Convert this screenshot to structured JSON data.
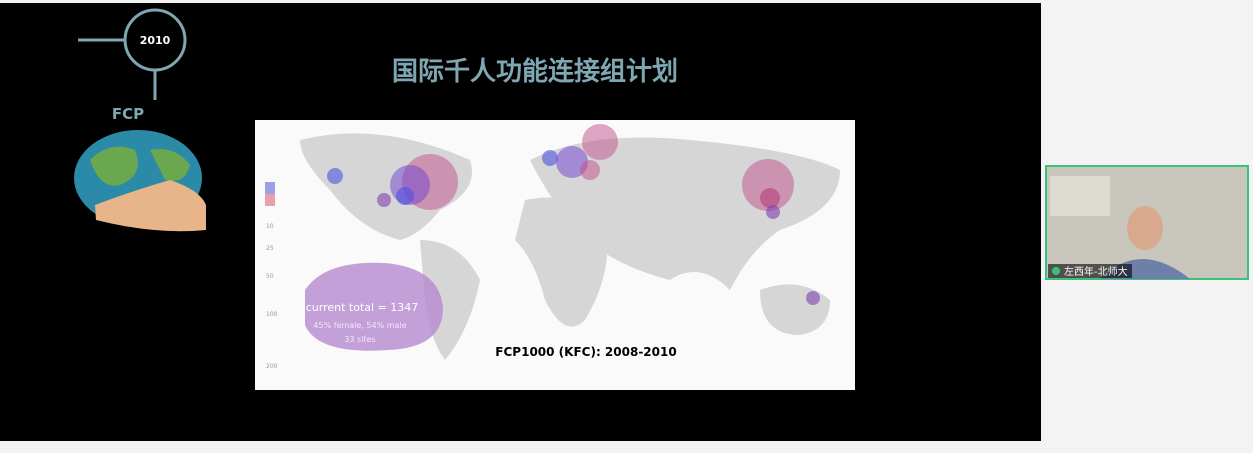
{
  "slide": {
    "title": "国际千人功能连接组计划",
    "timeline_year": "2010",
    "timeline_label": "FCP",
    "map": {
      "caption": "FCP1000 (KFC): 2008-2010",
      "total": "current total = 1347",
      "gender": "45% female, 54% male",
      "sites": "33 sites",
      "legend_sizes": [
        "10",
        "25",
        "50",
        "100",
        "200"
      ]
    }
  },
  "participant": {
    "name": "左西年-北师大"
  }
}
